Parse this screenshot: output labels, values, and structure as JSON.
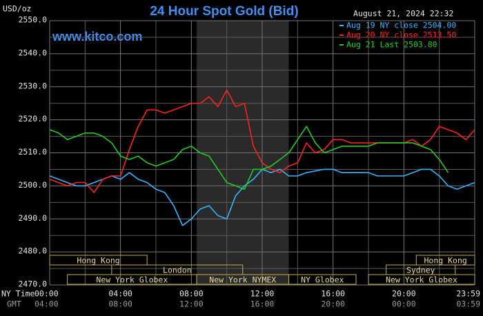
{
  "chart_data": {
    "type": "line",
    "title": "24 Hour Spot Gold (Bid)",
    "website": "www.kitco.com",
    "y_label": "USD/oz",
    "timestamp": "August 21, 2024 22:32",
    "x_row_labels": [
      "NY Time",
      "GMT"
    ],
    "xlim": [
      0,
      24
    ],
    "xticks": [
      {
        "value": 0,
        "label": "00:00"
      },
      {
        "value": 4,
        "label": "04:00"
      },
      {
        "value": 8,
        "label": "08:00"
      },
      {
        "value": 12,
        "label": "12:00"
      },
      {
        "value": 16,
        "label": "16:00"
      },
      {
        "value": 20,
        "label": "20:00"
      },
      {
        "value": 24,
        "label": "23:59"
      }
    ],
    "gmt_tick_labels": [
      "04:00",
      "08:00",
      "12:00",
      "16:00",
      "20:00",
      "00:00",
      "03:59"
    ],
    "x_minor_grid": [
      2,
      6,
      10,
      14,
      18,
      22
    ],
    "ylim": [
      2470,
      2550
    ],
    "yticks": [
      {
        "value": 2470,
        "label": "2470.0"
      },
      {
        "value": 2480,
        "label": "2480.0"
      },
      {
        "value": 2490,
        "label": "2490.0"
      },
      {
        "value": 2500,
        "label": "2500.0"
      },
      {
        "value": 2510,
        "label": "2510.0"
      },
      {
        "value": 2520,
        "label": "2520.0"
      },
      {
        "value": 2530,
        "label": "2530.0"
      },
      {
        "value": 2540,
        "label": "2540.0"
      },
      {
        "value": 2550,
        "label": "2550.0"
      }
    ],
    "y_minor_grid": [
      2475,
      2485,
      2495,
      2505,
      2515,
      2525,
      2535,
      2545
    ],
    "grid": true,
    "legend": "top-right",
    "sessions": [
      {
        "name": "Hong Kong",
        "start": 0,
        "end": 5.5,
        "row": 0
      },
      {
        "name": "London",
        "start": 3.5,
        "end": 10.9,
        "row": 1
      },
      {
        "name": "New York Globex",
        "start": 1,
        "end": 8.3,
        "row": 2
      },
      {
        "name": "New York NYMEX",
        "start": 8.3,
        "end": 13.5,
        "row": 2,
        "highlight": true
      },
      {
        "name": "NY Globex",
        "start": 13.5,
        "end": 17.3,
        "row": 2
      },
      {
        "name": "Sydney",
        "start": 19,
        "end": 22.9,
        "row": 1
      },
      {
        "name": "Hong Kong",
        "start": 20.7,
        "end": 24,
        "row": 0
      },
      {
        "name": "New York Globex",
        "start": 18,
        "end": 24,
        "row": 2
      }
    ],
    "x": [
      0,
      0.5,
      1,
      1.5,
      2,
      2.5,
      3,
      3.5,
      4,
      4.5,
      5,
      5.5,
      6,
      6.5,
      7,
      7.5,
      8,
      8.5,
      9,
      9.5,
      10,
      10.5,
      11,
      11.5,
      12,
      12.5,
      13,
      13.5,
      14,
      14.5,
      15,
      15.5,
      16,
      16.5,
      17,
      17.5,
      18,
      18.5,
      19,
      19.5,
      20,
      20.5,
      21,
      21.5,
      22,
      22.5,
      23,
      23.5,
      24
    ],
    "series": [
      {
        "name": "Aug 19 NY close 2504.00",
        "color": "#33b5ff",
        "values": [
          2503,
          2502,
          2501,
          2500,
          2500,
          2501,
          2502,
          2503,
          2502,
          2504,
          2502,
          2501,
          2499,
          2498,
          2494,
          2488,
          2490,
          2493,
          2494,
          2491,
          2490,
          2497,
          2500,
          2502,
          2505,
          2504,
          2505,
          2503,
          2503,
          2504,
          2504.5,
          2505,
          2505,
          2504,
          2504,
          2504,
          2504,
          2503,
          2503,
          2503,
          2503,
          2504,
          2505,
          2505,
          2503,
          2500,
          2499,
          2500,
          2501
        ]
      },
      {
        "name": "Aug 20 NY close 2513.50",
        "color": "#ff2020",
        "values": [
          2502,
          2501,
          2500,
          2501,
          2501,
          2498,
          2502,
          2503,
          2503,
          2511,
          2518,
          2523,
          2523,
          2522,
          2523,
          2524,
          2525,
          2525,
          2527,
          2524,
          2529,
          2524,
          2525,
          2512,
          2507,
          2505,
          2504,
          2506,
          2507,
          2513,
          2510,
          2511,
          2514,
          2514,
          2513,
          2513,
          2513,
          2513,
          2513,
          2513,
          2513,
          2514,
          2512,
          2514,
          2518,
          2517,
          2516,
          2514,
          2517
        ]
      },
      {
        "name": "Aug 21 Last 2503.80",
        "color": "#22cc22",
        "values": [
          2517,
          2516,
          2514,
          2515,
          2516,
          2516,
          2515,
          2513,
          2509,
          2508,
          2509,
          2507,
          2506,
          2507,
          2508,
          2511,
          2512,
          2510,
          2509,
          2505,
          2501,
          2500,
          2499,
          2505,
          2505,
          2506,
          2508,
          2510,
          2514,
          2518,
          2513,
          2510,
          2511,
          2512,
          2512,
          2512,
          2512,
          2513,
          2513,
          2513,
          2513,
          2513,
          2512,
          2511,
          2508,
          2504,
          null,
          null,
          null
        ]
      }
    ]
  }
}
